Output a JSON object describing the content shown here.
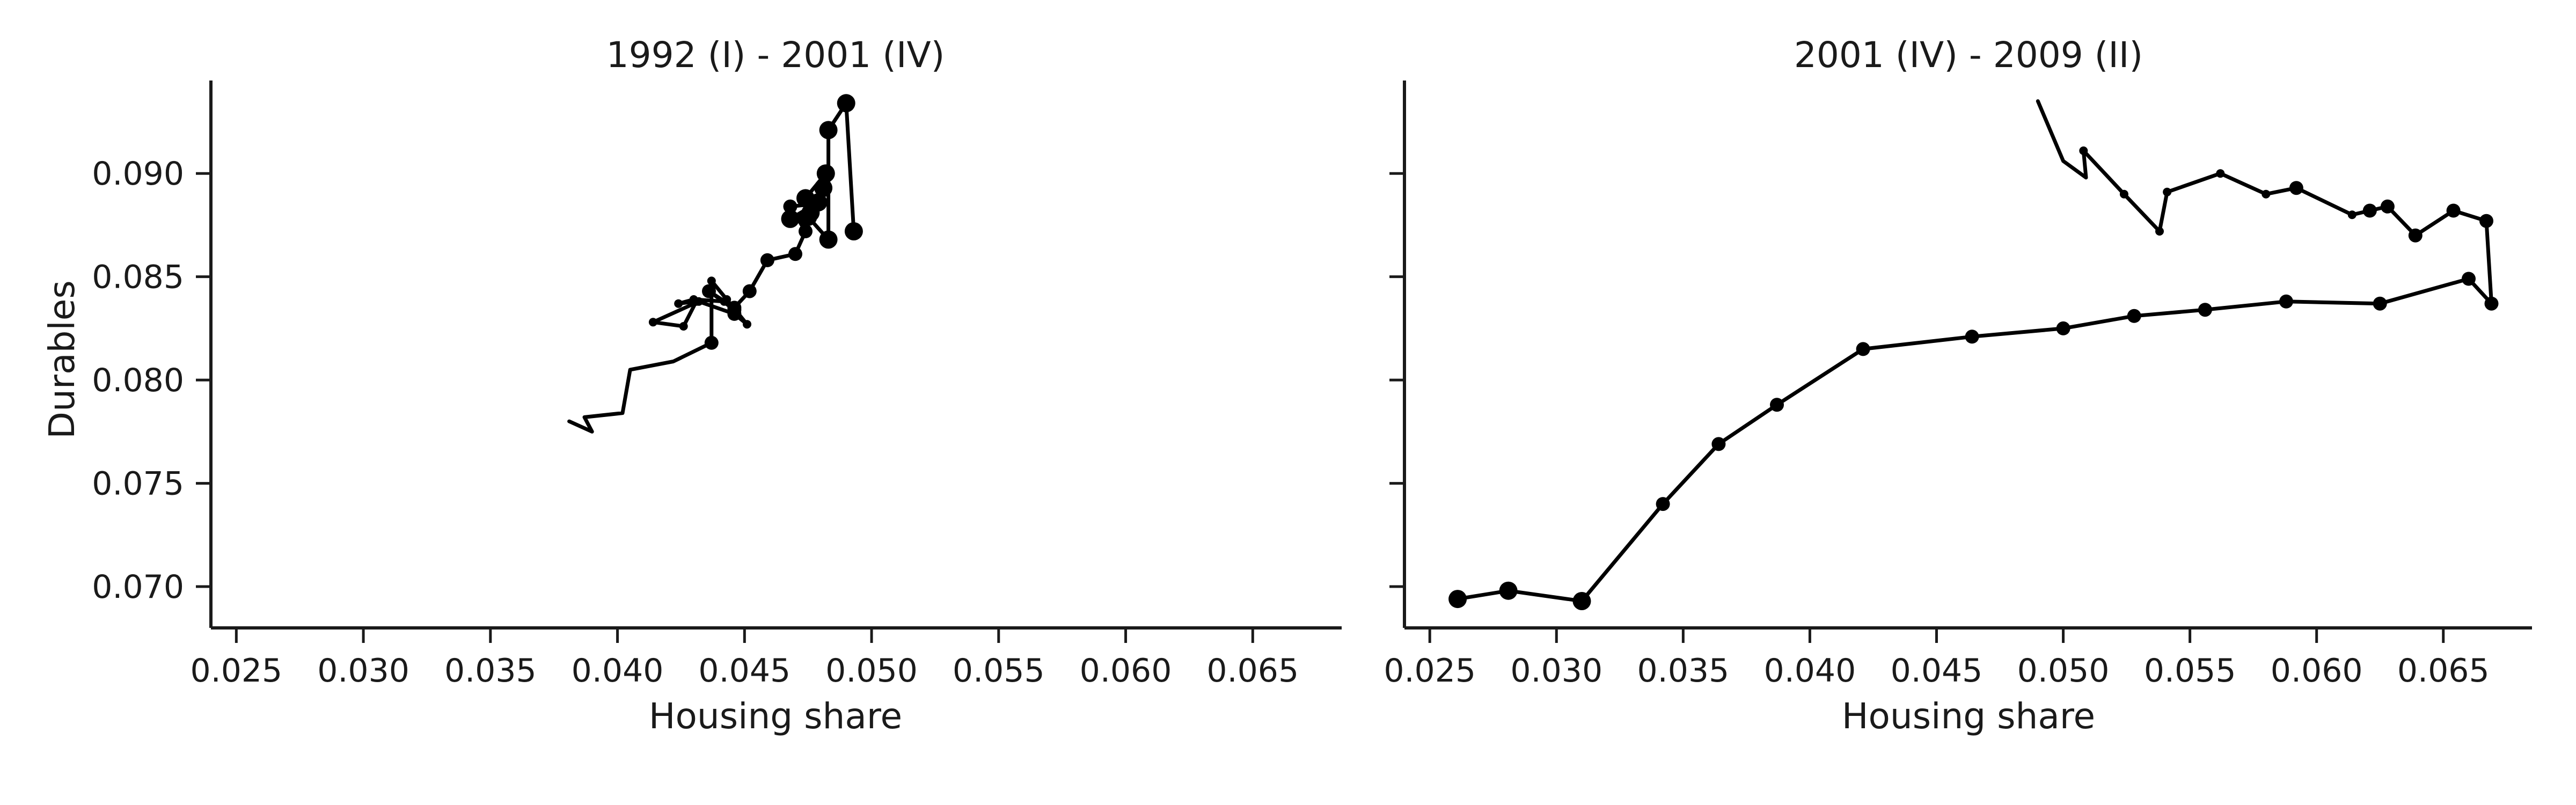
{
  "chart_data": [
    {
      "type": "line",
      "title": "1992 (I) - 2001 (IV)",
      "xlabel": "Housing share",
      "ylabel": "Durables",
      "xlim": [
        0.024,
        0.0685
      ],
      "ylim": [
        0.068,
        0.0945
      ],
      "xticks": [
        0.025,
        0.03,
        0.035,
        0.04,
        0.045,
        0.05,
        0.055,
        0.06,
        0.065
      ],
      "xtick_labels": [
        "0.025",
        "0.030",
        "0.035",
        "0.040",
        "0.045",
        "0.050",
        "0.055",
        "0.060",
        "0.065"
      ],
      "yticks": [
        0.07,
        0.075,
        0.08,
        0.085,
        0.09
      ],
      "ytick_labels": [
        "0.070",
        "0.075",
        "0.080",
        "0.085",
        "0.090"
      ],
      "grid": false,
      "line_color": "#000000",
      "series": [
        {
          "values": [
            {
              "x": 0.0381,
              "y": 0.078,
              "m": 0
            },
            {
              "x": 0.039,
              "y": 0.0775,
              "m": 0
            },
            {
              "x": 0.0387,
              "y": 0.0782,
              "m": 0
            },
            {
              "x": 0.0402,
              "y": 0.0784,
              "m": 0
            },
            {
              "x": 0.0405,
              "y": 0.0805,
              "m": 0
            },
            {
              "x": 0.0422,
              "y": 0.0809,
              "m": 0
            },
            {
              "x": 0.0437,
              "y": 0.0818,
              "m": 2
            },
            {
              "x": 0.0437,
              "y": 0.0848,
              "m": 1
            },
            {
              "x": 0.0443,
              "y": 0.0839,
              "m": 1
            },
            {
              "x": 0.0451,
              "y": 0.0827,
              "m": 1
            },
            {
              "x": 0.0446,
              "y": 0.0832,
              "m": 2
            },
            {
              "x": 0.0432,
              "y": 0.0838,
              "m": 1
            },
            {
              "x": 0.0414,
              "y": 0.0828,
              "m": 1
            },
            {
              "x": 0.0426,
              "y": 0.0826,
              "m": 1
            },
            {
              "x": 0.0431,
              "y": 0.0838,
              "m": 1
            },
            {
              "x": 0.0424,
              "y": 0.0837,
              "m": 1
            },
            {
              "x": 0.043,
              "y": 0.0839,
              "m": 1
            },
            {
              "x": 0.0442,
              "y": 0.0838,
              "m": 1
            },
            {
              "x": 0.0446,
              "y": 0.0834,
              "m": 2
            },
            {
              "x": 0.0436,
              "y": 0.0843,
              "m": 2
            },
            {
              "x": 0.0446,
              "y": 0.0835,
              "m": 2
            },
            {
              "x": 0.0452,
              "y": 0.0843,
              "m": 2
            },
            {
              "x": 0.0459,
              "y": 0.0858,
              "m": 2
            },
            {
              "x": 0.047,
              "y": 0.0861,
              "m": 2
            },
            {
              "x": 0.0474,
              "y": 0.0872,
              "m": 2
            },
            {
              "x": 0.0468,
              "y": 0.0884,
              "m": 2
            },
            {
              "x": 0.0476,
              "y": 0.0885,
              "m": 2
            },
            {
              "x": 0.0476,
              "y": 0.0881,
              "m": 3
            },
            {
              "x": 0.0468,
              "y": 0.0878,
              "m": 3
            },
            {
              "x": 0.0479,
              "y": 0.0886,
              "m": 3
            },
            {
              "x": 0.0474,
              "y": 0.0888,
              "m": 3
            },
            {
              "x": 0.0482,
              "y": 0.09,
              "m": 3
            },
            {
              "x": 0.0481,
              "y": 0.0893,
              "m": 3
            },
            {
              "x": 0.0475,
              "y": 0.0879,
              "m": 3
            },
            {
              "x": 0.0483,
              "y": 0.0868,
              "m": 3
            },
            {
              "x": 0.0483,
              "y": 0.0921,
              "m": 3
            },
            {
              "x": 0.049,
              "y": 0.0934,
              "m": 3
            },
            {
              "x": 0.0493,
              "y": 0.0872,
              "m": 3
            }
          ]
        }
      ]
    },
    {
      "type": "line",
      "title": "2001 (IV) - 2009 (II)",
      "xlabel": "Housing share",
      "ylabel": "",
      "xlim": [
        0.024,
        0.0685
      ],
      "ylim": [
        0.068,
        0.0945
      ],
      "xticks": [
        0.025,
        0.03,
        0.035,
        0.04,
        0.045,
        0.05,
        0.055,
        0.06,
        0.065
      ],
      "xtick_labels": [
        "0.025",
        "0.030",
        "0.035",
        "0.040",
        "0.045",
        "0.050",
        "0.055",
        "0.060",
        "0.065"
      ],
      "yticks": [
        0.07,
        0.075,
        0.08,
        0.085,
        0.09
      ],
      "ytick_labels": [
        "",
        "",
        "",
        "",
        ""
      ],
      "grid": false,
      "line_color": "#000000",
      "series": [
        {
          "values": [
            {
              "x": 0.049,
              "y": 0.0935,
              "m": 0
            },
            {
              "x": 0.05,
              "y": 0.0906,
              "m": 0
            },
            {
              "x": 0.0509,
              "y": 0.0898,
              "m": 0
            },
            {
              "x": 0.0508,
              "y": 0.0911,
              "m": 1
            },
            {
              "x": 0.0524,
              "y": 0.089,
              "m": 1
            },
            {
              "x": 0.0538,
              "y": 0.0872,
              "m": 1
            },
            {
              "x": 0.0541,
              "y": 0.0891,
              "m": 1
            },
            {
              "x": 0.0562,
              "y": 0.09,
              "m": 1
            },
            {
              "x": 0.058,
              "y": 0.089,
              "m": 1
            },
            {
              "x": 0.0592,
              "y": 0.0893,
              "m": 2
            },
            {
              "x": 0.0614,
              "y": 0.088,
              "m": 1
            },
            {
              "x": 0.0621,
              "y": 0.0882,
              "m": 2
            },
            {
              "x": 0.0628,
              "y": 0.0884,
              "m": 2
            },
            {
              "x": 0.0639,
              "y": 0.087,
              "m": 2
            },
            {
              "x": 0.0654,
              "y": 0.0882,
              "m": 2
            },
            {
              "x": 0.0667,
              "y": 0.0877,
              "m": 2
            },
            {
              "x": 0.0669,
              "y": 0.0837,
              "m": 2
            },
            {
              "x": 0.066,
              "y": 0.0849,
              "m": 2
            },
            {
              "x": 0.0625,
              "y": 0.0837,
              "m": 2
            },
            {
              "x": 0.0588,
              "y": 0.0838,
              "m": 2
            },
            {
              "x": 0.0556,
              "y": 0.0834,
              "m": 2
            },
            {
              "x": 0.0528,
              "y": 0.0831,
              "m": 2
            },
            {
              "x": 0.05,
              "y": 0.0825,
              "m": 2
            },
            {
              "x": 0.0464,
              "y": 0.0821,
              "m": 2
            },
            {
              "x": 0.0421,
              "y": 0.0815,
              "m": 2
            },
            {
              "x": 0.0387,
              "y": 0.0788,
              "m": 2
            },
            {
              "x": 0.0364,
              "y": 0.0769,
              "m": 2
            },
            {
              "x": 0.0342,
              "y": 0.074,
              "m": 2
            },
            {
              "x": 0.031,
              "y": 0.0693,
              "m": 3
            },
            {
              "x": 0.0281,
              "y": 0.0698,
              "m": 3
            },
            {
              "x": 0.0261,
              "y": 0.0694,
              "m": 3
            }
          ]
        }
      ]
    }
  ]
}
